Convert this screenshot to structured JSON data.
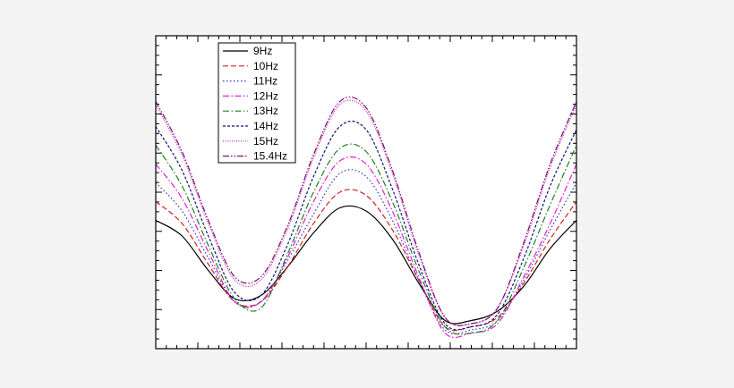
{
  "chart_data": {
    "type": "line",
    "title": "",
    "xlabel": "",
    "ylabel": "",
    "xlim": [
      0,
      1
    ],
    "ylim": [
      0,
      1
    ],
    "grid": false,
    "legend_position": "top-left",
    "x": [
      0,
      0.0625,
      0.125,
      0.1875,
      0.25,
      0.3125,
      0.375,
      0.4375,
      0.5,
      0.5625,
      0.625,
      0.6875,
      0.75,
      0.8125,
      0.875,
      0.9375,
      1
    ],
    "series": [
      {
        "name": "9Hz",
        "color": "#000000",
        "dash": "solid",
        "values": [
          0.41,
          0.36,
          0.25,
          0.16,
          0.17,
          0.26,
          0.37,
          0.45,
          0.44,
          0.35,
          0.21,
          0.09,
          0.09,
          0.12,
          0.2,
          0.32,
          0.41
        ]
      },
      {
        "name": "10Hz",
        "color": "#d62020",
        "dash": "dashed",
        "values": [
          0.47,
          0.4,
          0.27,
          0.15,
          0.15,
          0.26,
          0.4,
          0.5,
          0.49,
          0.38,
          0.22,
          0.07,
          0.07,
          0.1,
          0.21,
          0.35,
          0.47
        ]
      },
      {
        "name": "11Hz",
        "color": "#3030d0",
        "dash": "dotted",
        "values": [
          0.53,
          0.44,
          0.29,
          0.15,
          0.15,
          0.28,
          0.43,
          0.56,
          0.55,
          0.41,
          0.22,
          0.06,
          0.06,
          0.09,
          0.22,
          0.38,
          0.53
        ]
      },
      {
        "name": "12Hz",
        "color": "#e020d0",
        "dash": "dashdot",
        "values": [
          0.59,
          0.48,
          0.31,
          0.15,
          0.15,
          0.29,
          0.47,
          0.6,
          0.59,
          0.44,
          0.23,
          0.05,
          0.05,
          0.08,
          0.23,
          0.4,
          0.59
        ]
      },
      {
        "name": "13Hz",
        "color": "#208020",
        "dash": "dashdot",
        "values": [
          0.65,
          0.52,
          0.33,
          0.16,
          0.13,
          0.3,
          0.5,
          0.64,
          0.63,
          0.47,
          0.25,
          0.07,
          0.05,
          0.09,
          0.26,
          0.46,
          0.65
        ]
      },
      {
        "name": "14Hz",
        "color": "#101080",
        "dash": "shortdash",
        "values": [
          0.71,
          0.57,
          0.36,
          0.18,
          0.17,
          0.33,
          0.55,
          0.71,
          0.7,
          0.51,
          0.27,
          0.08,
          0.07,
          0.11,
          0.29,
          0.52,
          0.7
        ]
      },
      {
        "name": "15Hz",
        "color": "#c020c0",
        "dash": "densedot",
        "values": [
          0.78,
          0.62,
          0.4,
          0.22,
          0.22,
          0.38,
          0.61,
          0.78,
          0.76,
          0.56,
          0.3,
          0.1,
          0.08,
          0.13,
          0.33,
          0.58,
          0.78
        ]
      },
      {
        "name": "15.4Hz",
        "color": "#801070",
        "dash": "dashdotdot",
        "values": [
          0.79,
          0.63,
          0.41,
          0.23,
          0.23,
          0.39,
          0.62,
          0.79,
          0.77,
          0.57,
          0.31,
          0.1,
          0.08,
          0.13,
          0.34,
          0.59,
          0.79
        ]
      }
    ]
  }
}
